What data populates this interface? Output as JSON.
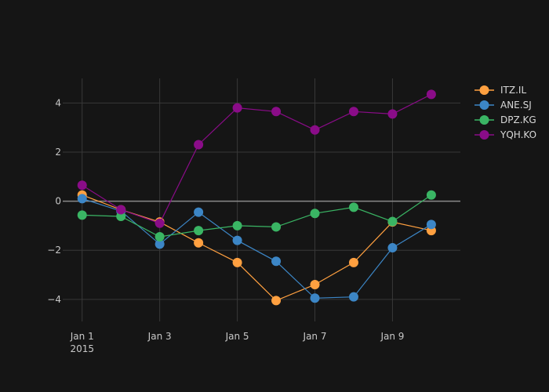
{
  "chart_data": {
    "type": "line",
    "x": [
      "2015-01-01",
      "2015-01-02",
      "2015-01-03",
      "2015-01-04",
      "2015-01-05",
      "2015-01-06",
      "2015-01-07",
      "2015-01-08",
      "2015-01-09",
      "2015-01-10"
    ],
    "x_ticks": [
      {
        "x": "2015-01-01",
        "label": "Jan 1",
        "sublabel": "2015"
      },
      {
        "x": "2015-01-03",
        "label": "Jan 3"
      },
      {
        "x": "2015-01-05",
        "label": "Jan 5"
      },
      {
        "x": "2015-01-07",
        "label": "Jan 7"
      },
      {
        "x": "2015-01-09",
        "label": "Jan 9"
      }
    ],
    "y_ticks": [
      4,
      2,
      0,
      -2,
      -4
    ],
    "y_tick_labels": [
      "4",
      "2",
      "0",
      "−2",
      "−4"
    ],
    "xlim": [
      "2014-12-31T12:00",
      "2015-01-10T18:00"
    ],
    "ylim": [
      -4.9,
      5.0
    ],
    "grid": true,
    "legend_position": "top-right",
    "title": "",
    "xlabel": "",
    "ylabel": "",
    "series": [
      {
        "name": "ITZ.IL",
        "color": "#ffa040",
        "values": [
          0.25,
          -0.35,
          -0.85,
          -1.7,
          -2.5,
          -4.05,
          -3.4,
          -2.5,
          -0.85,
          -1.2
        ]
      },
      {
        "name": "ANE.SJ",
        "color": "#3c86c6",
        "values": [
          0.1,
          -0.4,
          -1.75,
          -0.45,
          -1.6,
          -2.45,
          -3.95,
          -3.9,
          -1.9,
          -0.95
        ]
      },
      {
        "name": "DPZ.KG",
        "color": "#3ab564",
        "values": [
          -0.57,
          -0.62,
          -1.45,
          -1.2,
          -1.0,
          -1.05,
          -0.5,
          -0.25,
          -0.83,
          0.25
        ]
      },
      {
        "name": "YQH.KO",
        "color": "#8a0c88",
        "values": [
          0.65,
          -0.35,
          -0.9,
          2.3,
          3.8,
          3.65,
          2.9,
          3.65,
          3.55,
          4.35
        ]
      }
    ]
  }
}
